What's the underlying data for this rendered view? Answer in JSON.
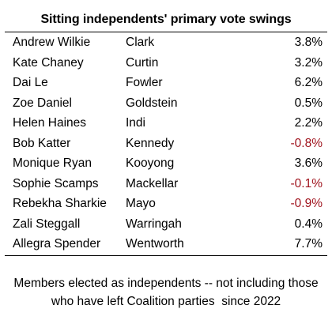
{
  "title": "Sitting independents' primary vote swings",
  "rows": [
    {
      "name": "Andrew Wilkie",
      "seat": "Clark",
      "swing": "3.8%",
      "negative": false
    },
    {
      "name": "Kate Chaney",
      "seat": "Curtin",
      "swing": "3.2%",
      "negative": false
    },
    {
      "name": "Dai Le",
      "seat": "Fowler",
      "swing": "6.2%",
      "negative": false
    },
    {
      "name": "Zoe Daniel",
      "seat": "Goldstein",
      "swing": "0.5%",
      "negative": false
    },
    {
      "name": "Helen Haines",
      "seat": "Indi",
      "swing": "2.2%",
      "negative": false
    },
    {
      "name": "Bob Katter",
      "seat": "Kennedy",
      "swing": "-0.8%",
      "negative": true
    },
    {
      "name": "Monique Ryan",
      "seat": "Kooyong",
      "swing": "3.6%",
      "negative": false
    },
    {
      "name": "Sophie Scamps",
      "seat": "Mackellar",
      "swing": "-0.1%",
      "negative": true
    },
    {
      "name": "Rebekha Sharkie",
      "seat": "Mayo",
      "swing": "-0.9%",
      "negative": true
    },
    {
      "name": "Zali Steggall",
      "seat": "Warringah",
      "swing": "0.4%",
      "negative": false
    },
    {
      "name": "Allegra Spender",
      "seat": "Wentworth",
      "swing": "7.7%",
      "negative": false
    }
  ],
  "footnote": {
    "line1": "Members elected as independents -- not including those",
    "line2": "who have left Coalition parties  since 2022"
  },
  "colors": {
    "negative": "#a0141e",
    "text": "#000000"
  }
}
